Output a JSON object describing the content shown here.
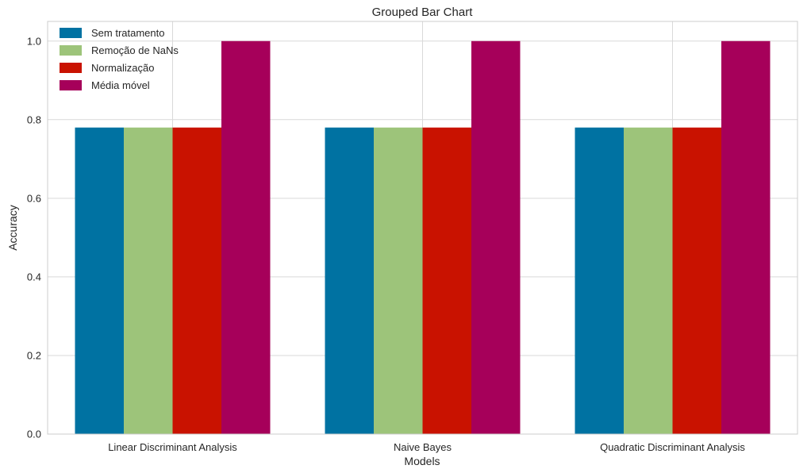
{
  "chart_data": {
    "type": "bar",
    "title": "Grouped Bar Chart",
    "xlabel": "Models",
    "ylabel": "Accuracy",
    "categories": [
      "Linear Discriminant Analysis",
      "Naive Bayes",
      "Quadratic Discriminant Analysis"
    ],
    "series": [
      {
        "name": "Sem tratamento",
        "color": "#0072a2",
        "values": [
          0.78,
          0.78,
          0.78
        ]
      },
      {
        "name": "Remoção de NaNs",
        "color": "#9dc47a",
        "values": [
          0.78,
          0.78,
          0.78
        ]
      },
      {
        "name": "Normalização",
        "color": "#c91200",
        "values": [
          0.78,
          0.78,
          0.78
        ]
      },
      {
        "name": "Média móvel",
        "color": "#a6005a",
        "values": [
          1.0,
          1.0,
          1.0
        ]
      }
    ],
    "ylim": [
      0.0,
      1.05
    ],
    "yticks": [
      "0.0",
      "0.2",
      "0.4",
      "0.6",
      "0.8",
      "1.0"
    ],
    "grid": true,
    "legend_position": "top-left",
    "colors": {
      "grid": "#d9d9d9",
      "axes_border": "#cccccc",
      "text": "#262626"
    }
  }
}
